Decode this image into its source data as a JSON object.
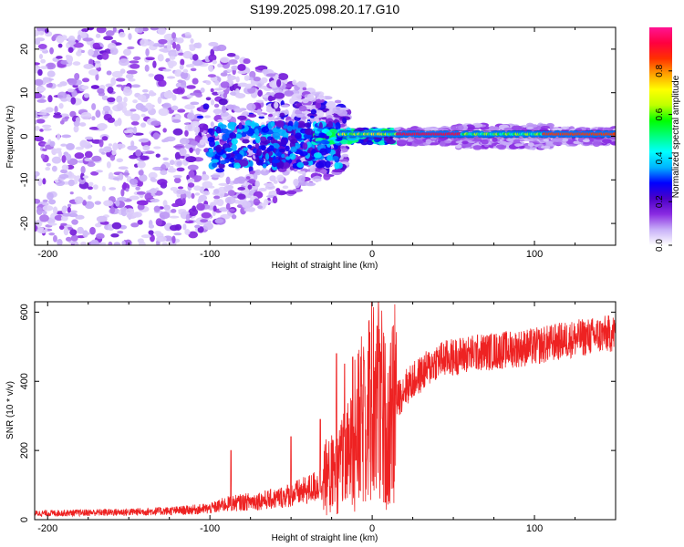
{
  "title": "S199.2025.098.20.17.G10",
  "chart_data": [
    {
      "type": "heatmap",
      "xlabel": "Height of straight line (km)",
      "ylabel": "Frequency (Hz)",
      "xlim": [
        -208,
        150
      ],
      "ylim": [
        -25,
        25
      ],
      "x_ticks": [
        -200,
        -100,
        0,
        100
      ],
      "y_ticks": [
        -20,
        -10,
        0,
        10,
        20
      ],
      "colorbar": {
        "label": "Normalized spectral amplitude",
        "range": [
          0,
          1
        ],
        "ticks": [
          "0.0",
          "0.2",
          "0.4",
          "0.6",
          "0.8"
        ],
        "colors": [
          "#ffffff",
          "#c8b0f8",
          "#8a2be2",
          "#4b00c8",
          "#0000ff",
          "#00b4ff",
          "#00ffff",
          "#00ff80",
          "#00ff00",
          "#c0ff00",
          "#ffff00",
          "#ffa000",
          "#ff3000",
          "#ff0040",
          "#ff1493"
        ]
      },
      "features": {
        "scatter_region_km": [
          -208,
          -20
        ],
        "scatter_freq_spread_hz": [
          -25,
          25
        ],
        "narrowing_region_km": [
          -120,
          -20
        ],
        "tone_start_km": -20,
        "tone_frequency_hz": 0.5,
        "tone_peak_amplitude": 0.95,
        "band_start_km": 50,
        "band_halfwidth_hz": 1.2
      }
    },
    {
      "type": "line",
      "xlabel": "Height of straight line (km)",
      "ylabel": "SNR (10 * v/v)",
      "xlim": [
        -208,
        150
      ],
      "ylim": [
        0,
        630
      ],
      "x_ticks": [
        -200,
        -100,
        0,
        100
      ],
      "y_ticks": [
        0,
        200,
        400,
        600
      ],
      "color": "#ee2222",
      "envelope": {
        "x": [
          -208,
          -180,
          -150,
          -120,
          -100,
          -90,
          -80,
          -60,
          -40,
          -25,
          -15,
          -5,
          0,
          5,
          10,
          15,
          20,
          30,
          40,
          60,
          80,
          100,
          120,
          150
        ],
        "y": [
          18,
          20,
          22,
          26,
          32,
          45,
          50,
          60,
          85,
          120,
          180,
          300,
          360,
          320,
          250,
          340,
          380,
          420,
          460,
          480,
          490,
          500,
          520,
          540
        ]
      },
      "spikes": [
        {
          "x": -87,
          "y": 200
        },
        {
          "x": -50,
          "y": 240
        },
        {
          "x": -32,
          "y": 290
        },
        {
          "x": -22,
          "y": 480
        },
        {
          "x": -17,
          "y": 450
        },
        {
          "x": -12,
          "y": 470
        },
        {
          "x": -5,
          "y": 460
        },
        {
          "x": 3,
          "y": 560
        },
        {
          "x": 10,
          "y": 110
        }
      ]
    }
  ]
}
